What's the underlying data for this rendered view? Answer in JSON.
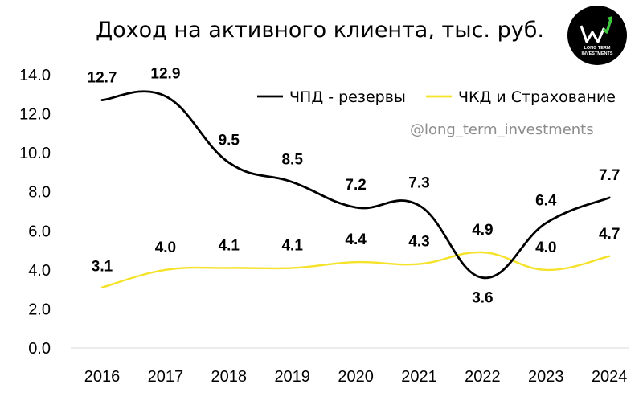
{
  "chart_data": {
    "type": "line",
    "title": "Доход на активного клиента, тыс. руб.",
    "categories": [
      "2016",
      "2017",
      "2018",
      "2019",
      "2020",
      "2021",
      "2022",
      "2023",
      "2024"
    ],
    "yticks": [
      "0.0",
      "2.0",
      "4.0",
      "6.0",
      "8.0",
      "10.0",
      "12.0",
      "14.0"
    ],
    "ylim": [
      0,
      14
    ],
    "grid": false,
    "legend_position": "top-right",
    "series": [
      {
        "name": "ЧПД - резервы",
        "color": "#000000",
        "values": [
          12.7,
          12.9,
          9.5,
          8.5,
          7.2,
          7.3,
          3.6,
          6.4,
          7.7
        ],
        "labels": [
          "12.7",
          "12.9",
          "9.5",
          "8.5",
          "7.2",
          "7.3",
          "3.6",
          "6.4",
          "7.7"
        ]
      },
      {
        "name": "ЧКД и Страхование",
        "color": "#f5e22a",
        "values": [
          3.1,
          4.0,
          4.1,
          4.1,
          4.4,
          4.3,
          4.9,
          4.0,
          4.7
        ],
        "labels": [
          "3.1",
          "4.0",
          "4.1",
          "4.1",
          "4.4",
          "4.3",
          "4.9",
          "4.0",
          "4.7"
        ]
      }
    ]
  },
  "watermark": "@long_term_investments",
  "logo": {
    "line1": "LONG TERM",
    "line2": "INVESTMENTS",
    "icon": "growth-arrow-logo-icon"
  }
}
